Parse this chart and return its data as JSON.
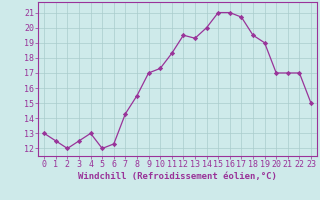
{
  "x": [
    0,
    1,
    2,
    3,
    4,
    5,
    6,
    7,
    8,
    9,
    10,
    11,
    12,
    13,
    14,
    15,
    16,
    17,
    18,
    19,
    20,
    21,
    22,
    23
  ],
  "y": [
    13,
    12.5,
    12,
    12.5,
    13,
    12,
    12.3,
    14.3,
    15.5,
    17,
    17.3,
    18.3,
    19.5,
    19.3,
    20,
    21,
    21,
    20.7,
    19.5,
    19,
    17,
    17,
    17,
    15
  ],
  "line_color": "#993399",
  "marker": "D",
  "marker_size": 2.2,
  "bg_color": "#ceeaea",
  "grid_color": "#aacccc",
  "xlabel": "Windchill (Refroidissement éolien,°C)",
  "xlabel_fontsize": 6.5,
  "ylabel_ticks": [
    12,
    13,
    14,
    15,
    16,
    17,
    18,
    19,
    20,
    21
  ],
  "xlim": [
    -0.5,
    23.5
  ],
  "ylim": [
    11.5,
    21.7
  ],
  "tick_fontsize": 6.0,
  "tick_color": "#993399",
  "spine_color": "#993399",
  "axis_bg": "#ceeaea"
}
